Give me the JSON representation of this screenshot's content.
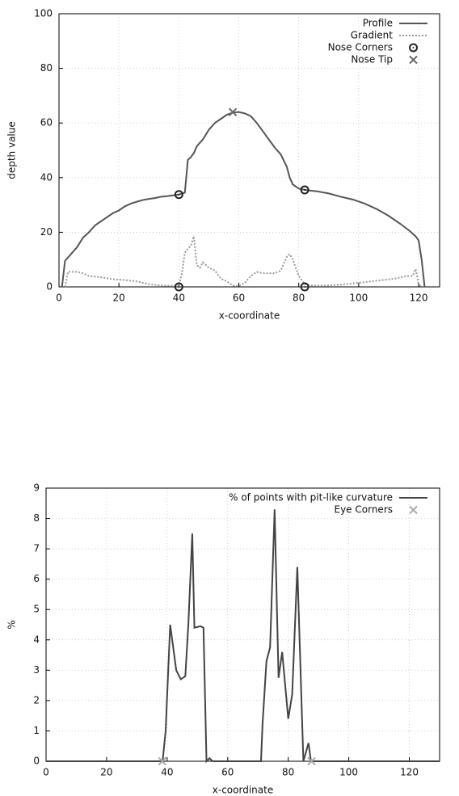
{
  "chart_data": [
    {
      "type": "line",
      "xlabel": "x-coordinate",
      "ylabel": "depth value",
      "xlim": [
        0,
        127
      ],
      "ylim": [
        0,
        100
      ],
      "xticks": [
        0,
        20,
        40,
        60,
        80,
        100,
        120
      ],
      "yticks": [
        0,
        20,
        40,
        60,
        80,
        100
      ],
      "grid": true,
      "legend": "top-right",
      "series": [
        {
          "name": "Profile",
          "color": "#555555",
          "style": "solid",
          "marker": "none",
          "x": [
            1,
            2,
            4,
            6,
            8,
            10,
            12,
            14,
            16,
            18,
            20,
            22,
            24,
            26,
            28,
            30,
            32,
            34,
            36,
            38,
            40,
            42,
            43,
            44,
            45,
            46,
            48,
            50,
            52,
            54,
            56,
            58,
            60,
            62,
            64,
            66,
            68,
            70,
            72,
            74,
            76,
            77,
            78,
            80,
            82,
            86,
            90,
            94,
            98,
            102,
            106,
            110,
            114,
            117,
            119,
            120,
            121,
            122
          ],
          "values": [
            0,
            9.5,
            12,
            14.5,
            18,
            20,
            22.5,
            24,
            25.5,
            27,
            28,
            29.5,
            30.5,
            31.2,
            31.8,
            32.2,
            32.5,
            33,
            33.2,
            33.5,
            33.8,
            34.5,
            46.5,
            47.5,
            49,
            51.5,
            54,
            57.5,
            60,
            61.5,
            63,
            63.8,
            64,
            63.5,
            62.5,
            60,
            57,
            54,
            51,
            48.5,
            44,
            40,
            37.5,
            36,
            35.5,
            35,
            34.2,
            33,
            32,
            30.5,
            28.5,
            26,
            23,
            20.5,
            18.5,
            17,
            10,
            0
          ]
        },
        {
          "name": "Gradient",
          "color": "#999999",
          "style": "dotted",
          "marker": "none",
          "x": [
            2,
            3,
            6,
            8,
            10,
            14,
            18,
            22,
            26,
            30,
            34,
            40,
            41,
            42,
            43,
            44,
            45,
            46,
            47,
            48,
            50,
            52,
            54,
            56,
            58,
            60,
            62,
            64,
            66,
            68,
            70,
            72,
            74,
            76,
            77,
            78,
            80,
            82,
            84,
            90,
            96,
            100,
            104,
            108,
            112,
            116,
            118,
            119,
            120,
            121
          ],
          "values": [
            0,
            5.5,
            5.5,
            5,
            4,
            3.5,
            2.8,
            2.5,
            2,
            1,
            0.5,
            0.3,
            5,
            12.5,
            14,
            15,
            18.5,
            8,
            7,
            9,
            7,
            6,
            3,
            2,
            0.5,
            0.3,
            1.5,
            4,
            5.5,
            5,
            5,
            5,
            6,
            11,
            12,
            10,
            4,
            1,
            0.5,
            0.5,
            1,
            1.5,
            2,
            2.5,
            3,
            4,
            4,
            6.5,
            1,
            0
          ]
        },
        {
          "name": "Nose Corners",
          "color": "#222222",
          "style": "none",
          "marker": "circle",
          "x": [
            40,
            40,
            82,
            82
          ],
          "values": [
            33.8,
            0,
            35.5,
            0
          ]
        },
        {
          "name": "Nose Tip",
          "color": "#666666",
          "style": "none",
          "marker": "cross",
          "x": [
            58
          ],
          "values": [
            64
          ]
        }
      ]
    },
    {
      "type": "line",
      "xlabel": "x-coordinate",
      "ylabel": "%",
      "xlim": [
        0,
        130
      ],
      "ylim": [
        0,
        9
      ],
      "xticks": [
        0,
        20,
        40,
        60,
        80,
        100,
        120
      ],
      "yticks": [
        0,
        1,
        2,
        3,
        4,
        5,
        6,
        7,
        8,
        9
      ],
      "grid": true,
      "legend": "top-right",
      "series": [
        {
          "name": "% of points with pit-like curvature",
          "color": "#444444",
          "style": "solid",
          "marker": "none",
          "x": [
            0,
            38.5,
            39.5,
            41,
            43,
            44.5,
            46,
            47,
            48.3,
            49,
            51,
            52,
            53,
            54,
            55,
            71,
            71.5,
            72.8,
            74,
            75.5,
            76.8,
            78,
            80,
            81.3,
            83,
            85,
            86.7,
            87.5,
            130
          ],
          "values": [
            0,
            0,
            1,
            4.5,
            3,
            2.7,
            2.8,
            4.5,
            7.5,
            4.4,
            4.45,
            4.4,
            0,
            0.1,
            0,
            0,
            1.2,
            3.3,
            3.75,
            8.3,
            2.75,
            3.6,
            1.4,
            2.2,
            6.4,
            0,
            0.6,
            0,
            0
          ]
        },
        {
          "name": "Eye Corners",
          "color": "#aaaaaa",
          "style": "none",
          "marker": "cross",
          "x": [
            38.4,
            87.7
          ],
          "values": [
            0,
            0
          ]
        }
      ]
    }
  ]
}
